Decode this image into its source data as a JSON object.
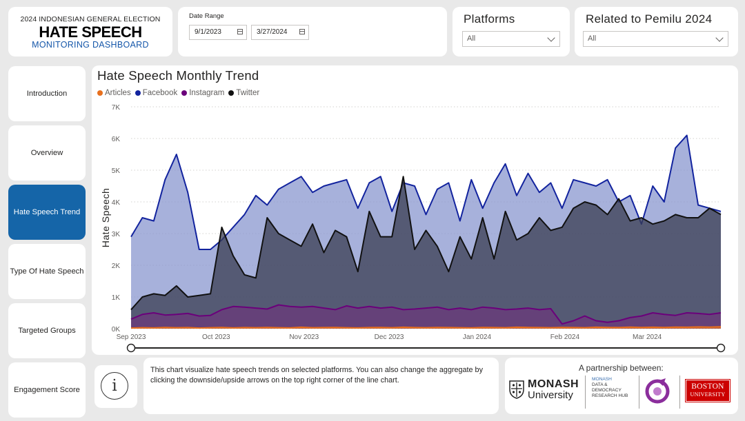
{
  "header": {
    "superscript": "2024 INDONESIAN GENERAL ELECTION",
    "title": "HATE SPEECH",
    "subtitle": "MONITORING DASHBOARD"
  },
  "date_range": {
    "label": "Date Range",
    "start": "9/1/2023",
    "end": "3/27/2024"
  },
  "platforms": {
    "title": "Platforms",
    "value": "All"
  },
  "related": {
    "title": "Related to Pemilu 2024",
    "value": "All"
  },
  "nav": {
    "items": [
      {
        "label": "Introduction",
        "active": false
      },
      {
        "label": "Overview",
        "active": false
      },
      {
        "label": "Hate Speech Trend",
        "active": true
      },
      {
        "label": "Type Of Hate Speech",
        "active": false
      },
      {
        "label": "Targeted Groups",
        "active": false
      },
      {
        "label": "Engagement Score",
        "active": false
      }
    ]
  },
  "description": "This chart visualize hate speech trends on selected platforms. You can also change the aggregate by clicking the downside/upside arrows on the top right corner of the line chart.",
  "partners": {
    "title": "A partnership between:",
    "monash_line1": "MONASH",
    "monash_line2": "University",
    "hub_line1": "MONASH",
    "hub_line2": "DATA &",
    "hub_line3": "DEMOCRACY",
    "hub_line4": "RESEARCH HUB",
    "bu_line1": "BOSTON",
    "bu_line2": "UNIVERSITY"
  },
  "colors": {
    "articles": "#e8701e",
    "facebook": "#12239e",
    "instagram": "#6b007b",
    "twitter": "#111111",
    "accent": "#1565a8"
  },
  "chart_data": {
    "type": "area",
    "title": "Hate Speech Monthly Trend",
    "ylabel": "Hate Speech",
    "xlabel": "",
    "ylim": [
      0,
      7000
    ],
    "ytick_labels": [
      "0K",
      "1K",
      "2K",
      "3K",
      "4K",
      "5K",
      "6K",
      "7K"
    ],
    "xtick_labels": [
      "Sep 2023",
      "Oct 2023",
      "Nov 2023",
      "Dec 2023",
      "Jan 2024",
      "Feb 2024",
      "Mar 2024"
    ],
    "grid": true,
    "legend": "top-left",
    "x": [
      "2023-09-01",
      "2023-09-05",
      "2023-09-09",
      "2023-09-13",
      "2023-09-17",
      "2023-09-21",
      "2023-09-25",
      "2023-09-29",
      "2023-10-03",
      "2023-10-07",
      "2023-10-11",
      "2023-10-15",
      "2023-10-19",
      "2023-10-23",
      "2023-10-27",
      "2023-10-31",
      "2023-11-04",
      "2023-11-08",
      "2023-11-12",
      "2023-11-16",
      "2023-11-20",
      "2023-11-24",
      "2023-11-28",
      "2023-12-02",
      "2023-12-06",
      "2023-12-10",
      "2023-12-14",
      "2023-12-18",
      "2023-12-22",
      "2023-12-26",
      "2023-12-30",
      "2024-01-03",
      "2024-01-07",
      "2024-01-11",
      "2024-01-15",
      "2024-01-19",
      "2024-01-23",
      "2024-01-27",
      "2024-01-31",
      "2024-02-04",
      "2024-02-08",
      "2024-02-12",
      "2024-02-16",
      "2024-02-20",
      "2024-02-24",
      "2024-02-28",
      "2024-03-03",
      "2024-03-07",
      "2024-03-11",
      "2024-03-15",
      "2024-03-19",
      "2024-03-23",
      "2024-03-27"
    ],
    "series": [
      {
        "name": "Articles",
        "values": [
          20,
          30,
          25,
          40,
          30,
          35,
          20,
          30,
          40,
          25,
          35,
          30,
          40,
          30,
          25,
          45,
          30,
          35,
          40,
          30,
          25,
          35,
          40,
          30,
          45,
          35,
          30,
          40,
          35,
          30,
          25,
          40,
          35,
          30,
          45,
          40,
          35,
          30,
          40,
          35,
          30,
          45,
          40,
          35,
          50,
          40,
          45,
          40,
          50,
          45,
          55,
          50,
          60
        ]
      },
      {
        "name": "Facebook",
        "values": [
          2900,
          3500,
          3400,
          4700,
          5500,
          4300,
          2500,
          2500,
          2800,
          3200,
          3600,
          4200,
          3900,
          4400,
          4600,
          4800,
          4300,
          4500,
          4600,
          4700,
          3800,
          4600,
          4800,
          3700,
          4600,
          4500,
          3600,
          4400,
          4600,
          3400,
          4700,
          3800,
          4600,
          5200,
          4200,
          4900,
          4300,
          4600,
          3800,
          4700,
          4600,
          4500,
          4700,
          4000,
          4200,
          3300,
          4500,
          4000,
          5700,
          6100,
          3900,
          3800,
          3700
        ]
      },
      {
        "name": "Instagram",
        "values": [
          300,
          450,
          500,
          430,
          450,
          480,
          400,
          420,
          600,
          700,
          680,
          650,
          620,
          750,
          700,
          680,
          700,
          650,
          600,
          720,
          650,
          700,
          650,
          680,
          600,
          620,
          650,
          680,
          600,
          650,
          600,
          680,
          650,
          600,
          620,
          650,
          600,
          630,
          150,
          250,
          400,
          250,
          200,
          250,
          350,
          400,
          500,
          450,
          420,
          500,
          480,
          450,
          500
        ]
      },
      {
        "name": "Twitter",
        "values": [
          600,
          1000,
          1100,
          1050,
          1350,
          1000,
          1050,
          1100,
          3200,
          2300,
          1700,
          1600,
          3500,
          3000,
          2800,
          2600,
          3300,
          2400,
          3100,
          2900,
          1800,
          3700,
          2900,
          2900,
          4800,
          2500,
          3100,
          2600,
          1800,
          2900,
          2200,
          3500,
          2200,
          3700,
          2800,
          3000,
          3500,
          3100,
          3200,
          3800,
          4000,
          3900,
          3600,
          4100,
          3400,
          3500,
          3300,
          3400,
          3600,
          3500,
          3500,
          3800,
          3600
        ]
      }
    ]
  }
}
